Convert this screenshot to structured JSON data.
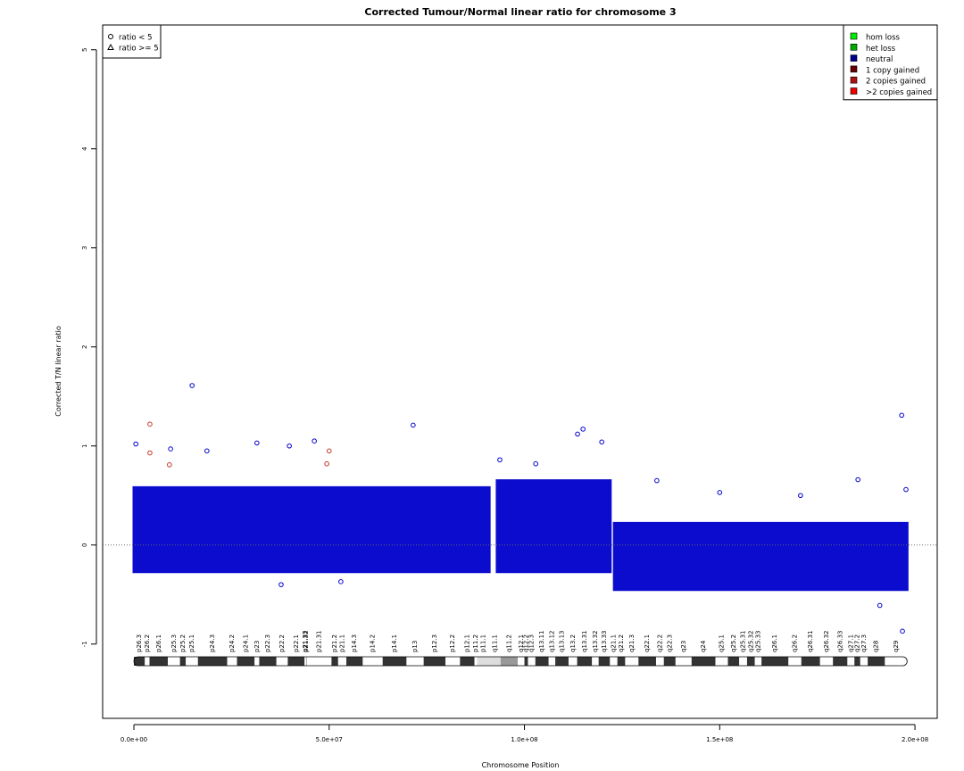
{
  "chart_data": {
    "type": "scatter",
    "title": "Corrected Tumour/Normal linear ratio for chromosome  3",
    "x_label": "Chromosome Position",
    "y_label": "Corrected T/N linear ratio",
    "xlim": [
      -8000000.0,
      205700000.0
    ],
    "ylim": [
      -1.75,
      5.25
    ],
    "xticks": [
      {
        "value": 0,
        "label": "0.0e+00"
      },
      {
        "value": 50000000.0,
        "label": "5.0e+07"
      },
      {
        "value": 100000000.0,
        "label": "1.0e+08"
      },
      {
        "value": 150000000.0,
        "label": "1.5e+08"
      },
      {
        "value": 200000000.0,
        "label": "2.0e+08"
      }
    ],
    "yticks": [
      -1,
      0,
      1,
      2,
      3,
      4,
      5
    ],
    "reference_line": 0,
    "legend_position": "topright",
    "series": [
      {
        "name": "hom loss",
        "color": "#00ee00",
        "x": [],
        "values": []
      },
      {
        "name": "het loss",
        "color": "#00aa00",
        "x": [],
        "values": []
      },
      {
        "name": "neutral",
        "color": "#00008b",
        "point_color": "#0000cc",
        "x": [
          500000.0,
          14900000.0,
          71500000.0,
          196600000.0,
          115000000.0,
          113600000.0,
          119800000.0,
          46200000.0,
          31500000.0,
          39800000.0,
          9400000.0,
          18700000.0,
          197700000.0,
          196800000.0,
          191000000.0,
          37700000.0,
          53000000.0,
          133900000.0,
          185400000.0,
          170700000.0,
          150000000.0,
          93700000.0,
          102900000.0
        ],
        "values": [
          1.02,
          1.61,
          1.21,
          1.31,
          1.17,
          1.12,
          1.04,
          1.05,
          1.03,
          1.0,
          0.97,
          0.95,
          0.56,
          -0.87,
          -0.61,
          -0.4,
          -0.37,
          0.65,
          0.66,
          0.5,
          0.53,
          0.86,
          0.82
        ]
      },
      {
        "name": "1 copy gained",
        "color": "#660000",
        "x": [],
        "values": []
      },
      {
        "name": "2 copies gained",
        "color": "#aa1111",
        "point_color": "#c0392b",
        "x": [
          4100000.0,
          4100000.0,
          9100000.0,
          50000000.0,
          49400000.0
        ],
        "values": [
          1.22,
          0.93,
          0.81,
          0.95,
          0.82
        ]
      },
      {
        "name": ">2 copies gained",
        "color": "#ee0000",
        "x": [],
        "values": []
      }
    ],
    "envelope": {
      "color": "#0000cc",
      "x": [
        0,
        91000000.0,
        92000000.0,
        93000000.0,
        122000000.0,
        122500000.0,
        123000000.0,
        198000000.0
      ],
      "low": [
        -0.27,
        -0.27,
        null,
        -0.27,
        -0.27,
        null,
        -0.45,
        -0.45
      ],
      "high": [
        0.58,
        0.58,
        null,
        0.65,
        0.65,
        null,
        0.22,
        0.22
      ]
    },
    "shape_legend_position": "topleft",
    "shape_legend": [
      {
        "label": "ratio < 5",
        "shape": "circle"
      },
      {
        "label": "ratio >= 5",
        "shape": "triangle"
      }
    ],
    "bands": {
      "names": [
        "p26.3",
        "p26.2",
        "p26.1",
        "p25.3",
        "p25.2",
        "p25.1",
        "p24.3",
        "p24.2",
        "p24.1",
        "p23",
        "p22.3",
        "p22.2",
        "p22.1",
        "p21.33",
        "p21.32",
        "p21.31",
        "p21.2",
        "p21.1",
        "p14.3",
        "p14.2",
        "p14.1",
        "p13",
        "p12.3",
        "p12.2",
        "p12.1",
        "p11.2",
        "p11.1",
        "q11.1",
        "q11.2",
        "q12.1",
        "q12.2",
        "q12.3",
        "q13.11",
        "q13.12",
        "q13.13",
        "q13.2",
        "q13.31",
        "q13.32",
        "q13.33",
        "q21.1",
        "q21.2",
        "q21.3",
        "q22.1",
        "q22.2",
        "q22.3",
        "q23",
        "q24",
        "q25.1",
        "q25.2",
        "q25.31",
        "q25.32",
        "q25.33",
        "q26.1",
        "q26.2",
        "q26.31",
        "q26.32",
        "q26.33",
        "q27.1",
        "q27.2",
        "q27.3",
        "q28",
        "q29"
      ],
      "starts": [
        0,
        2800000.0,
        4000000.0,
        8700000.0,
        11800000.0,
        13300000.0,
        16400000.0,
        23900000.0,
        26400000.0,
        30900000.0,
        32100000.0,
        36500000.0,
        39400000.0,
        43700000.0,
        44100000.0,
        44200000.0,
        50600000.0,
        52300000.0,
        54400000.0,
        58600000.0,
        63700000.0,
        69800000.0,
        74200000.0,
        79800000.0,
        83500000.0,
        87200000.0,
        87900000.0,
        91000000.0,
        93900000.0,
        98300000.0,
        100000000.0,
        100900000.0,
        102800000.0,
        106200000.0,
        107900000.0,
        111300000.0,
        113500000.0,
        117300000.0,
        119000000.0,
        121900000.0,
        123800000.0,
        125800000.0,
        129200000.0,
        133700000.0,
        135700000.0,
        138700000.0,
        142800000.0,
        148900000.0,
        152100000.0,
        155000000.0,
        157000000.0,
        159000000.0,
        160700000.0,
        167600000.0,
        170900000.0,
        175700000.0,
        179000000.0,
        182700000.0,
        184500000.0,
        186000000.0,
        187900000.0,
        192300000.0
      ],
      "ends": [
        2800000.0,
        4000000.0,
        8700000.0,
        11800000.0,
        13300000.0,
        16400000.0,
        23900000.0,
        26400000.0,
        30900000.0,
        32100000.0,
        36500000.0,
        39400000.0,
        43700000.0,
        44100000.0,
        44200000.0,
        50600000.0,
        52300000.0,
        54400000.0,
        58600000.0,
        63700000.0,
        69800000.0,
        74200000.0,
        79800000.0,
        83500000.0,
        87200000.0,
        87900000.0,
        91000000.0,
        93900000.0,
        98300000.0,
        100000000.0,
        100900000.0,
        102800000.0,
        106200000.0,
        107900000.0,
        111300000.0,
        113500000.0,
        117300000.0,
        119000000.0,
        121900000.0,
        123800000.0,
        125800000.0,
        129200000.0,
        133700000.0,
        135700000.0,
        138700000.0,
        142800000.0,
        148900000.0,
        152100000.0,
        155000000.0,
        157000000.0,
        159000000.0,
        160700000.0,
        167600000.0,
        170900000.0,
        175700000.0,
        179000000.0,
        182700000.0,
        184500000.0,
        186000000.0,
        187900000.0,
        192300000.0,
        198000000.0
      ],
      "colors": [
        "#333",
        "#fff",
        "#333",
        "#fff",
        "#333",
        "#fff",
        "#333",
        "#fff",
        "#333",
        "#fff",
        "#333",
        "#fff",
        "#333",
        "#fff",
        "#333",
        "#fff",
        "#333",
        "#fff",
        "#333",
        "#fff",
        "#333",
        "#fff",
        "#333",
        "#fff",
        "#333",
        "#fff",
        "#ddd",
        "#ddd",
        "#999",
        "#fff",
        "#333",
        "#fff",
        "#333",
        "#fff",
        "#333",
        "#fff",
        "#333",
        "#fff",
        "#333",
        "#fff",
        "#333",
        "#fff",
        "#333",
        "#fff",
        "#333",
        "#fff",
        "#333",
        "#fff",
        "#333",
        "#fff",
        "#333",
        "#fff",
        "#333",
        "#fff",
        "#333",
        "#fff",
        "#333",
        "#fff",
        "#333",
        "#fff",
        "#333",
        "#fff"
      ]
    }
  }
}
